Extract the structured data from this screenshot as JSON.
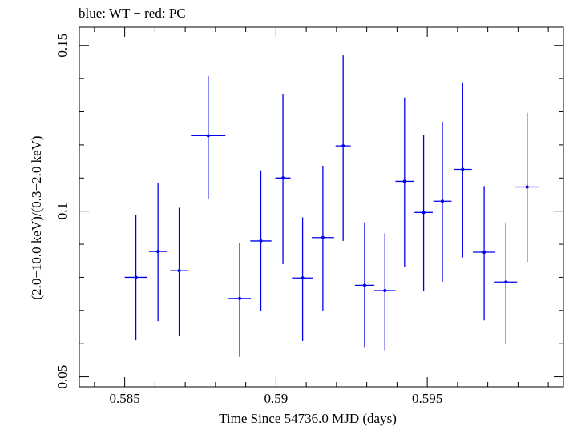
{
  "chart_data": {
    "type": "scatter",
    "title": "blue: WT − red: PC",
    "xlabel": "Time Since 54736.0 MJD (days)",
    "ylabel": "(2.0−10.0 keV)/(0.3−2.0 keV)",
    "xlim": [
      0.5835,
      0.5995
    ],
    "ylim": [
      0.047,
      0.1555
    ],
    "x_ticks": [
      {
        "value": 0.585,
        "label": "0.585"
      },
      {
        "value": 0.59,
        "label": "0.59"
      },
      {
        "value": 0.595,
        "label": "0.595"
      }
    ],
    "y_ticks": [
      {
        "value": 0.05,
        "label": "0.05"
      },
      {
        "value": 0.1,
        "label": "0.1"
      },
      {
        "value": 0.15,
        "label": "0.15"
      }
    ],
    "grid": false,
    "series": [
      {
        "color": "#0000ee",
        "points": [
          {
            "x": 0.58537,
            "y": 0.08,
            "xerr": 0.00037,
            "yerr_low": 0.019,
            "yerr_high": 0.0187
          },
          {
            "x": 0.5861,
            "y": 0.0878,
            "xerr": 0.0003,
            "yerr_low": 0.021,
            "yerr_high": 0.0207
          },
          {
            "x": 0.5868,
            "y": 0.082,
            "xerr": 0.0003,
            "yerr_low": 0.0196,
            "yerr_high": 0.019
          },
          {
            "x": 0.58776,
            "y": 0.1228,
            "xerr": 0.00057,
            "yerr_low": 0.019,
            "yerr_high": 0.018
          },
          {
            "x": 0.5888,
            "y": 0.0736,
            "xerr": 0.00037,
            "yerr_low": 0.0176,
            "yerr_high": 0.0167
          },
          {
            "x": 0.5895,
            "y": 0.091,
            "xerr": 0.00035,
            "yerr_low": 0.0213,
            "yerr_high": 0.0213
          },
          {
            "x": 0.59023,
            "y": 0.11,
            "xerr": 0.00025,
            "yerr_low": 0.026,
            "yerr_high": 0.0253
          },
          {
            "x": 0.59088,
            "y": 0.0798,
            "xerr": 0.00035,
            "yerr_low": 0.019,
            "yerr_high": 0.0183
          },
          {
            "x": 0.59155,
            "y": 0.092,
            "xerr": 0.00037,
            "yerr_low": 0.022,
            "yerr_high": 0.0217
          },
          {
            "x": 0.59222,
            "y": 0.1197,
            "xerr": 0.00025,
            "yerr_low": 0.0287,
            "yerr_high": 0.0273
          },
          {
            "x": 0.59293,
            "y": 0.0776,
            "xerr": 0.00032,
            "yerr_low": 0.0186,
            "yerr_high": 0.019
          },
          {
            "x": 0.5936,
            "y": 0.076,
            "xerr": 0.00035,
            "yerr_low": 0.018,
            "yerr_high": 0.0173
          },
          {
            "x": 0.59425,
            "y": 0.109,
            "xerr": 0.0003,
            "yerr_low": 0.026,
            "yerr_high": 0.0253
          },
          {
            "x": 0.59488,
            "y": 0.0996,
            "xerr": 0.0003,
            "yerr_low": 0.0236,
            "yerr_high": 0.0234
          },
          {
            "x": 0.5955,
            "y": 0.103,
            "xerr": 0.0003,
            "yerr_low": 0.0243,
            "yerr_high": 0.024
          },
          {
            "x": 0.59617,
            "y": 0.1126,
            "xerr": 0.0003,
            "yerr_low": 0.0266,
            "yerr_high": 0.026
          },
          {
            "x": 0.59688,
            "y": 0.0876,
            "xerr": 0.00037,
            "yerr_low": 0.0206,
            "yerr_high": 0.02
          },
          {
            "x": 0.5976,
            "y": 0.0786,
            "xerr": 0.00037,
            "yerr_low": 0.0186,
            "yerr_high": 0.018
          },
          {
            "x": 0.5983,
            "y": 0.1073,
            "xerr": 0.0004,
            "yerr_low": 0.0226,
            "yerr_high": 0.0224
          }
        ]
      }
    ]
  }
}
